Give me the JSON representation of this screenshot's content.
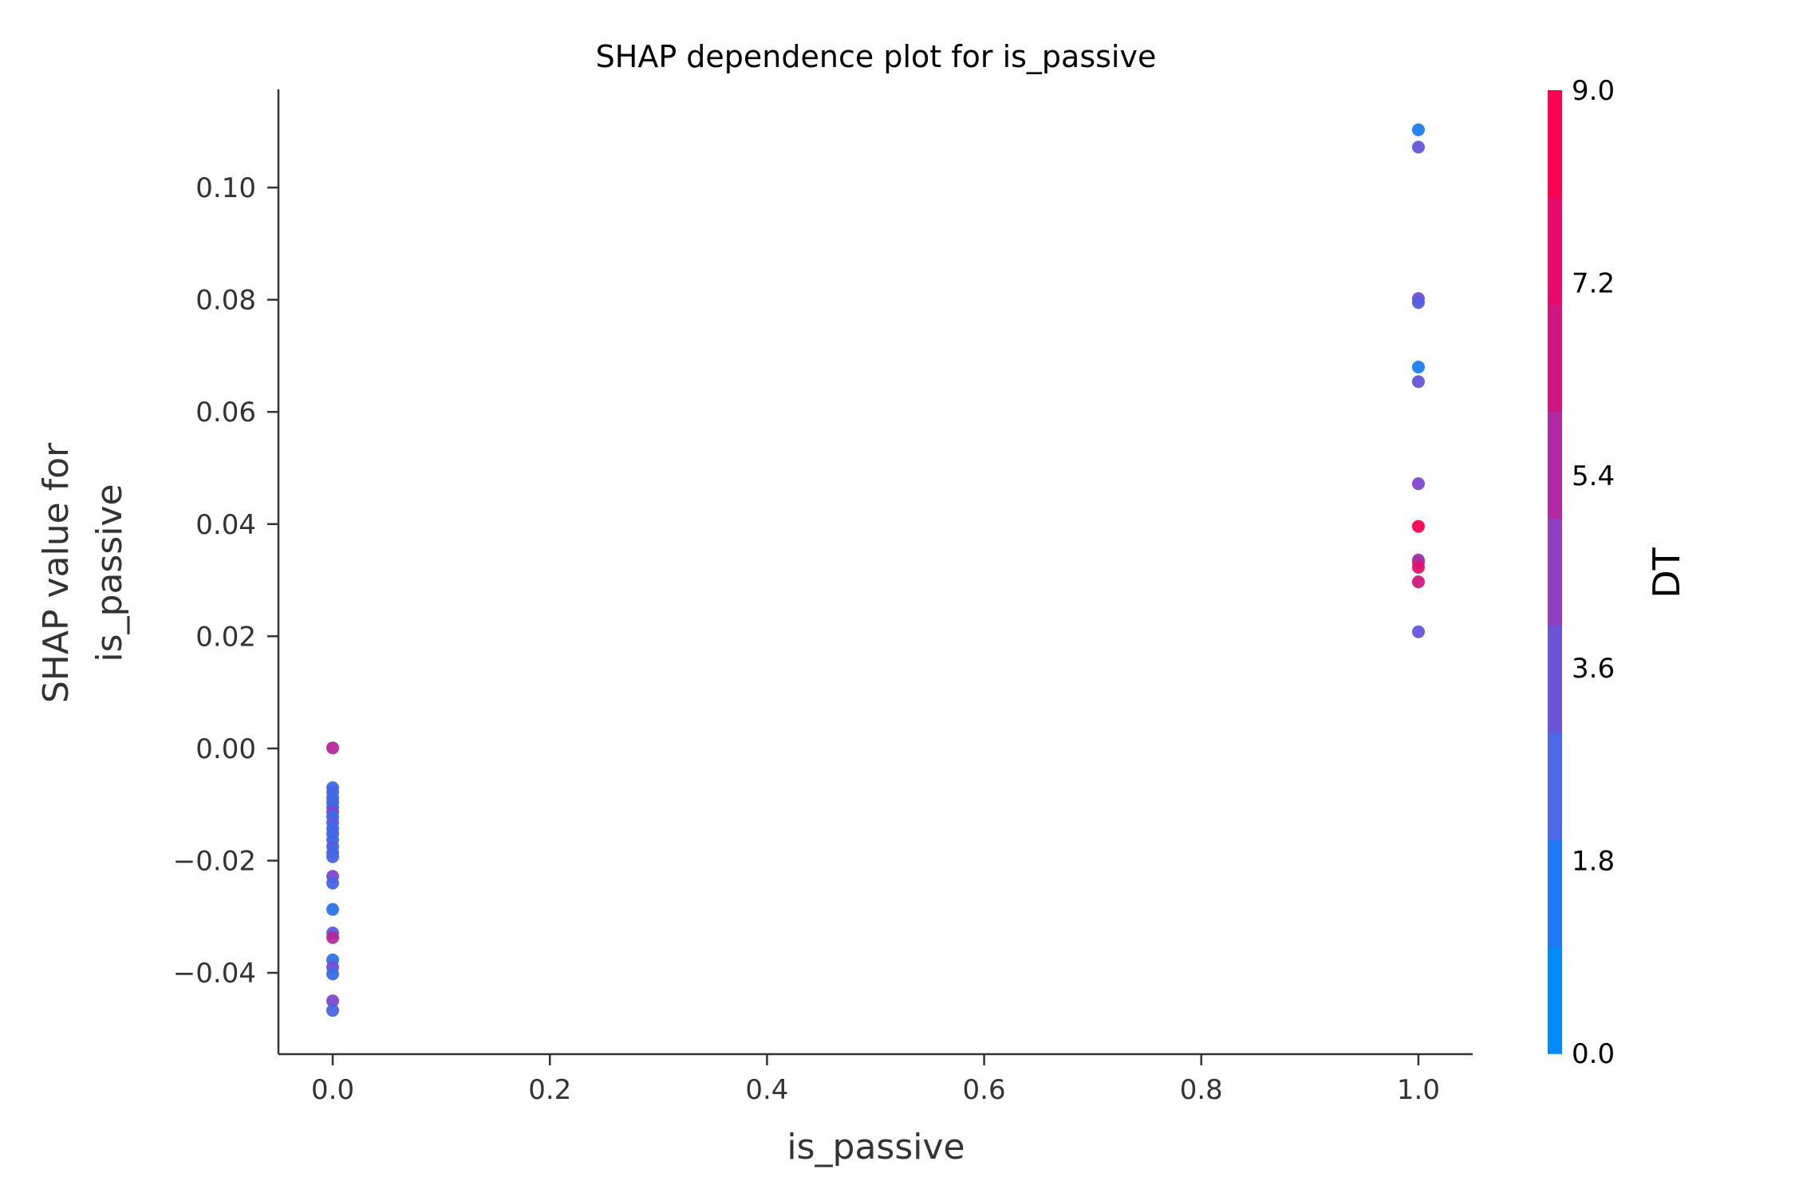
{
  "chart_data": {
    "type": "scatter",
    "title": "SHAP dependence plot for is_passive",
    "xlabel": "is_passive",
    "ylabel_lines": [
      "SHAP value for",
      "is_passive"
    ],
    "xlim": [
      -0.05,
      1.05
    ],
    "ylim": [
      -0.0545,
      0.1175
    ],
    "xticks": [
      0.0,
      0.2,
      0.4,
      0.6,
      0.8,
      1.0
    ],
    "xtick_labels": [
      "0.0",
      "0.2",
      "0.4",
      "0.6",
      "0.8",
      "1.0"
    ],
    "yticks": [
      -0.04,
      -0.02,
      0.0,
      0.02,
      0.04,
      0.06,
      0.08,
      0.1
    ],
    "ytick_labels": [
      "−0.04",
      "−0.02",
      "0.00",
      "0.02",
      "0.04",
      "0.06",
      "0.08",
      "0.10"
    ],
    "grid": false,
    "colorbar": {
      "label": "DT",
      "range": [
        0.0,
        9.0
      ],
      "ticks": [
        0.0,
        1.8,
        3.6,
        5.4,
        7.2,
        9.0
      ],
      "tick_labels": [
        "0.0",
        "1.8",
        "3.6",
        "5.4",
        "7.2",
        "9.0"
      ],
      "colors": [
        "#008bfb",
        "#1f79f5",
        "#4a68e8",
        "#6b55d6",
        "#8e40c0",
        "#b22aa3",
        "#d11684",
        "#ea0a6a",
        "#ff0052"
      ]
    },
    "points": [
      {
        "x": 1.0,
        "y": 0.1103,
        "c": 1.0
      },
      {
        "x": 1.0,
        "y": 0.1072,
        "c": 3.5
      },
      {
        "x": 1.0,
        "y": 0.0802,
        "c": 4.0
      },
      {
        "x": 1.0,
        "y": 0.0795,
        "c": 3.0
      },
      {
        "x": 1.0,
        "y": 0.068,
        "c": 1.0
      },
      {
        "x": 1.0,
        "y": 0.0654,
        "c": 3.5
      },
      {
        "x": 1.0,
        "y": 0.0472,
        "c": 4.5
      },
      {
        "x": 1.0,
        "y": 0.0396,
        "c": 9.0
      },
      {
        "x": 1.0,
        "y": 0.0336,
        "c": 5.5
      },
      {
        "x": 1.0,
        "y": 0.0332,
        "c": 6.0
      },
      {
        "x": 1.0,
        "y": 0.0323,
        "c": 8.0
      },
      {
        "x": 1.0,
        "y": 0.0297,
        "c": 7.5
      },
      {
        "x": 1.0,
        "y": 0.0208,
        "c": 3.5
      },
      {
        "x": 0.0,
        "y": 0.0001,
        "c": 6.5
      },
      {
        "x": 0.0,
        "y": -0.007,
        "c": 2.0
      },
      {
        "x": 0.0,
        "y": -0.0078,
        "c": 2.5
      },
      {
        "x": 0.0,
        "y": -0.0088,
        "c": 2.0
      },
      {
        "x": 0.0,
        "y": -0.0096,
        "c": 2.5
      },
      {
        "x": 0.0,
        "y": -0.0105,
        "c": 2.0
      },
      {
        "x": 0.0,
        "y": -0.0113,
        "c": 4.5
      },
      {
        "x": 0.0,
        "y": -0.0122,
        "c": 2.0
      },
      {
        "x": 0.0,
        "y": -0.0132,
        "c": 3.0
      },
      {
        "x": 0.0,
        "y": -0.0143,
        "c": 2.0
      },
      {
        "x": 0.0,
        "y": -0.0152,
        "c": 2.5
      },
      {
        "x": 0.0,
        "y": -0.0163,
        "c": 2.0
      },
      {
        "x": 0.0,
        "y": -0.0175,
        "c": 3.0
      },
      {
        "x": 0.0,
        "y": -0.0186,
        "c": 2.0
      },
      {
        "x": 0.0,
        "y": -0.0193,
        "c": 2.5
      },
      {
        "x": 0.0,
        "y": -0.0228,
        "c": 4.5
      },
      {
        "x": 0.0,
        "y": -0.024,
        "c": 2.5
      },
      {
        "x": 0.0,
        "y": -0.0287,
        "c": 1.5
      },
      {
        "x": 0.0,
        "y": -0.0329,
        "c": 3.0
      },
      {
        "x": 0.0,
        "y": -0.0337,
        "c": 6.5
      },
      {
        "x": 0.0,
        "y": -0.0377,
        "c": 1.5
      },
      {
        "x": 0.0,
        "y": -0.039,
        "c": 4.0
      },
      {
        "x": 0.0,
        "y": -0.0402,
        "c": 2.0
      },
      {
        "x": 0.0,
        "y": -0.045,
        "c": 4.5
      },
      {
        "x": 0.0,
        "y": -0.0467,
        "c": 2.5
      }
    ]
  }
}
